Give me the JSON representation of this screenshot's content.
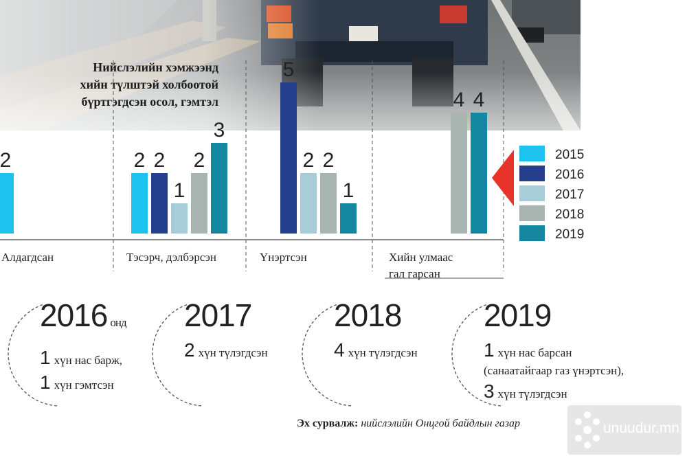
{
  "title_lines": [
    "Нийслэлийн хэмжээнд",
    "хийн түлштэй холбоотой",
    "бүртгэгдсэн осол, гэмтэл"
  ],
  "chart_data": {
    "type": "bar",
    "categories": [
      "Алдагдсан",
      "Тэсэрч, дэлбэрсэн",
      "Үнэртсэн",
      "Хийн улмаас гал гарсан"
    ],
    "category_label_lines": [
      [
        "Алдагдсан"
      ],
      [
        "Тэсэрч, дэлбэрсэн"
      ],
      [
        "Үнэртсэн"
      ],
      [
        "Хийн улмаас",
        "гал гарсан"
      ]
    ],
    "series": [
      {
        "name": "2015",
        "color": "#1dc2ee",
        "values": [
          2,
          2,
          null,
          null
        ]
      },
      {
        "name": "2016",
        "color": "#253f8c",
        "values": [
          null,
          2,
          5,
          null
        ]
      },
      {
        "name": "2017",
        "color": "#a9cdd8",
        "values": [
          null,
          1,
          2,
          null
        ]
      },
      {
        "name": "2018",
        "color": "#a8b5b1",
        "values": [
          null,
          2,
          2,
          4
        ]
      },
      {
        "name": "2019",
        "color": "#13879f",
        "values": [
          null,
          3,
          1,
          4
        ]
      }
    ],
    "ylim": [
      0,
      5
    ],
    "legend": "right",
    "grid": false
  },
  "timeline": [
    {
      "year": "2016",
      "suffix": "онд",
      "lines": [
        {
          "num": "1",
          "text": "хүн нас барж,"
        },
        {
          "num": "1",
          "text": "хүн гэмтсэн"
        }
      ]
    },
    {
      "year": "2017",
      "suffix": "",
      "lines": [
        {
          "num": "2",
          "text": "хүн түлэгдсэн"
        }
      ]
    },
    {
      "year": "2018",
      "suffix": "",
      "lines": [
        {
          "num": "4",
          "text": "хүн түлэгдсэн"
        }
      ]
    },
    {
      "year": "2019",
      "suffix": "",
      "lines": [
        {
          "num": "1",
          "text": "хүн нас барсан"
        },
        {
          "num": "",
          "text": "(санаатайгаар газ үнэртсэн),"
        },
        {
          "num": "3",
          "text": "хүн түлэгдсэн"
        }
      ]
    }
  ],
  "source": {
    "label": "Эх сурвалж:",
    "text": "нийслэлийн Онцгой байдлын газар"
  },
  "watermark": "unuudur.mn",
  "colors": {
    "accent_arrow": "#e8332a"
  }
}
